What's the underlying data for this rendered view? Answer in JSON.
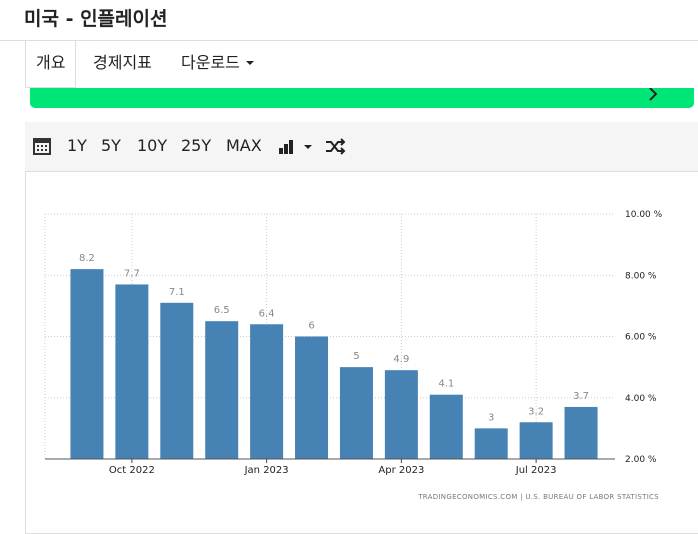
{
  "header": {
    "title": "미국 - 인플레이션"
  },
  "tabs": [
    "개요",
    "경제지표",
    "다운로드"
  ],
  "toolbar": {
    "ranges": [
      "1Y",
      "5Y",
      "10Y",
      "25Y",
      "MAX"
    ]
  },
  "chart_data": {
    "type": "bar",
    "categories": [
      null,
      "Oct 2022",
      null,
      null,
      "Jan 2023",
      null,
      null,
      "Apr 2023",
      null,
      null,
      "Jul 2023",
      null
    ],
    "values": [
      8.2,
      7.7,
      7.1,
      6.5,
      6.4,
      6,
      5,
      4.9,
      4.1,
      3,
      3.2,
      3.7
    ],
    "color": "#4682b4",
    "ylim": [
      2,
      10
    ],
    "yticks": [
      {
        "value": 2,
        "label": "2.00 %"
      },
      {
        "value": 4,
        "label": "4.00 %"
      },
      {
        "value": 6,
        "label": "6.00 %"
      },
      {
        "value": 8,
        "label": "8.00 %"
      },
      {
        "value": 10,
        "label": "10.00 %"
      }
    ],
    "grid": true,
    "source": "TRADINGECONOMICS.COM | U.S. BUREAU OF LABOR STATISTICS"
  }
}
